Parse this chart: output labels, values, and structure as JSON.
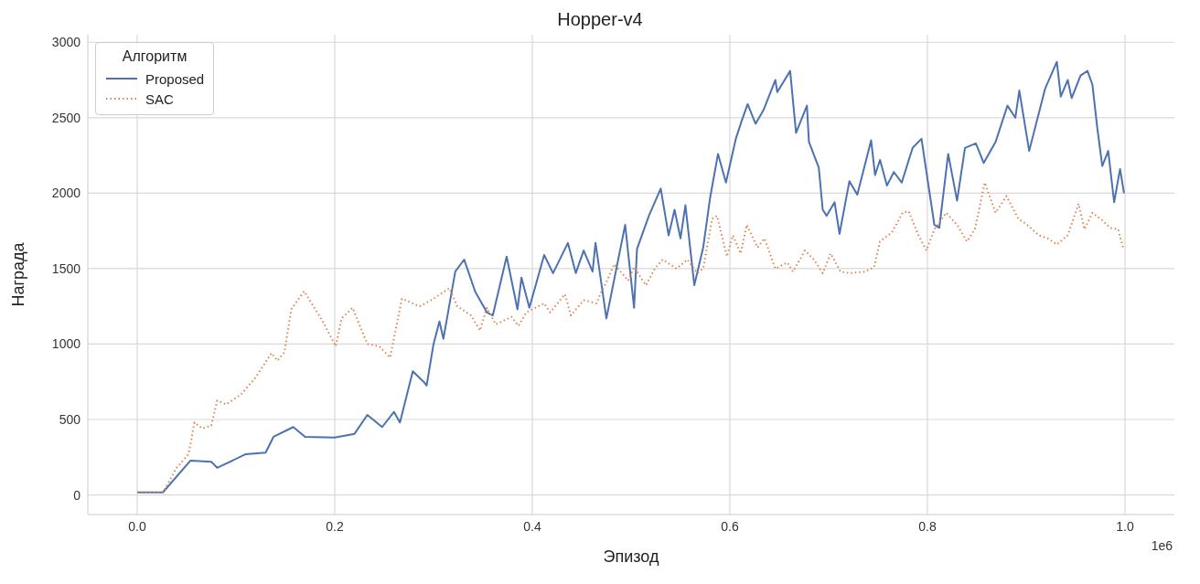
{
  "chart_data": {
    "type": "line",
    "title": "Hopper-v4",
    "xlabel": "Эпизод",
    "ylabel": "Награда",
    "legend_title": "Алгоритм",
    "legend": "top left",
    "grid": true,
    "annotations": [
      "1e6"
    ],
    "xlim": [
      -0.05,
      1.05
    ],
    "xticks": [
      {
        "value": 0,
        "label": "0.0"
      },
      {
        "value": 0.2,
        "label": "0.2"
      },
      {
        "value": 0.4,
        "label": "0.4"
      },
      {
        "value": 0.6,
        "label": "0.6"
      },
      {
        "value": 0.8,
        "label": "0.8"
      },
      {
        "value": 1,
        "label": "1.0"
      }
    ],
    "ylim": [
      -130,
      3050
    ],
    "yticks": [
      0,
      500,
      1000,
      1500,
      2000,
      2500,
      3000
    ],
    "series": [
      {
        "name": "Proposed",
        "color": "#4c72b0",
        "line_style": "solid",
        "x": [
          0,
          0.026,
          0.054,
          0.075,
          0.081,
          0.11,
          0.13,
          0.138,
          0.158,
          0.17,
          0.2,
          0.22,
          0.233,
          0.248,
          0.26,
          0.266,
          0.279,
          0.29,
          0.293,
          0.3,
          0.306,
          0.31,
          0.322,
          0.331,
          0.342,
          0.354,
          0.36,
          0.374,
          0.385,
          0.389,
          0.397,
          0.412,
          0.421,
          0.436,
          0.444,
          0.452,
          0.461,
          0.464,
          0.475,
          0.494,
          0.503,
          0.506,
          0.518,
          0.53,
          0.538,
          0.544,
          0.55,
          0.555,
          0.564,
          0.573,
          0.58,
          0.588,
          0.596,
          0.606,
          0.612,
          0.618,
          0.626,
          0.634,
          0.646,
          0.648,
          0.661,
          0.667,
          0.678,
          0.68,
          0.69,
          0.694,
          0.698,
          0.706,
          0.711,
          0.721,
          0.729,
          0.743,
          0.747,
          0.752,
          0.759,
          0.766,
          0.774,
          0.785,
          0.794,
          0.799,
          0.807,
          0.812,
          0.821,
          0.83,
          0.838,
          0.849,
          0.857,
          0.869,
          0.881,
          0.889,
          0.893,
          0.903,
          0.919,
          0.931,
          0.935,
          0.942,
          0.946,
          0.955,
          0.962,
          0.967,
          0.972,
          0.977,
          0.983,
          0.989,
          0.995,
          0.999
        ],
        "values": [
          17,
          17,
          228,
          220,
          180,
          270,
          280,
          385,
          450,
          385,
          380,
          405,
          530,
          450,
          550,
          480,
          820,
          750,
          725,
          1000,
          1150,
          1035,
          1480,
          1560,
          1350,
          1210,
          1190,
          1580,
          1230,
          1440,
          1240,
          1590,
          1470,
          1670,
          1470,
          1620,
          1480,
          1670,
          1170,
          1790,
          1240,
          1630,
          1850,
          2030,
          1720,
          1890,
          1700,
          1920,
          1390,
          1640,
          1970,
          2260,
          2070,
          2360,
          2480,
          2590,
          2460,
          2550,
          2750,
          2670,
          2810,
          2400,
          2580,
          2340,
          2170,
          1890,
          1850,
          1940,
          1730,
          2080,
          1990,
          2350,
          2120,
          2220,
          2050,
          2140,
          2070,
          2300,
          2360,
          2140,
          1790,
          1770,
          2260,
          1950,
          2300,
          2330,
          2200,
          2340,
          2580,
          2500,
          2680,
          2280,
          2690,
          2870,
          2640,
          2750,
          2630,
          2780,
          2810,
          2720,
          2430,
          2180,
          2280,
          1940,
          2160,
          2000
        ]
      },
      {
        "name": "SAC",
        "color": "#dd8452",
        "line_style": "dotted",
        "x": [
          0,
          0.026,
          0.04,
          0.052,
          0.058,
          0.066,
          0.075,
          0.081,
          0.09,
          0.105,
          0.12,
          0.136,
          0.142,
          0.149,
          0.156,
          0.169,
          0.187,
          0.201,
          0.207,
          0.218,
          0.233,
          0.245,
          0.256,
          0.268,
          0.286,
          0.3,
          0.316,
          0.324,
          0.338,
          0.347,
          0.354,
          0.363,
          0.379,
          0.386,
          0.394,
          0.412,
          0.418,
          0.433,
          0.439,
          0.452,
          0.465,
          0.47,
          0.475,
          0.483,
          0.497,
          0.503,
          0.515,
          0.524,
          0.532,
          0.546,
          0.557,
          0.567,
          0.573,
          0.582,
          0.587,
          0.597,
          0.603,
          0.611,
          0.617,
          0.628,
          0.635,
          0.646,
          0.658,
          0.664,
          0.676,
          0.685,
          0.694,
          0.702,
          0.712,
          0.721,
          0.737,
          0.746,
          0.752,
          0.764,
          0.775,
          0.781,
          0.791,
          0.799,
          0.807,
          0.819,
          0.83,
          0.84,
          0.848,
          0.858,
          0.869,
          0.88,
          0.892,
          0.901,
          0.913,
          0.922,
          0.931,
          0.942,
          0.953,
          0.959,
          0.967,
          0.977,
          0.985,
          0.993,
          0.998
        ],
        "values": [
          17,
          17,
          180,
          270,
          480,
          440,
          460,
          625,
          600,
          665,
          780,
          940,
          890,
          945,
          1230,
          1350,
          1160,
          985,
          1170,
          1240,
          1000,
          985,
          910,
          1300,
          1250,
          1300,
          1370,
          1250,
          1190,
          1090,
          1240,
          1130,
          1180,
          1120,
          1210,
          1270,
          1210,
          1330,
          1190,
          1290,
          1270,
          1350,
          1410,
          1530,
          1420,
          1510,
          1390,
          1500,
          1560,
          1500,
          1560,
          1470,
          1500,
          1830,
          1850,
          1580,
          1720,
          1600,
          1790,
          1640,
          1700,
          1500,
          1540,
          1480,
          1620,
          1560,
          1470,
          1600,
          1480,
          1470,
          1480,
          1510,
          1680,
          1740,
          1870,
          1880,
          1720,
          1620,
          1760,
          1870,
          1790,
          1680,
          1760,
          2070,
          1870,
          1980,
          1830,
          1790,
          1720,
          1700,
          1660,
          1720,
          1930,
          1760,
          1870,
          1820,
          1770,
          1760,
          1640
        ]
      }
    ]
  }
}
